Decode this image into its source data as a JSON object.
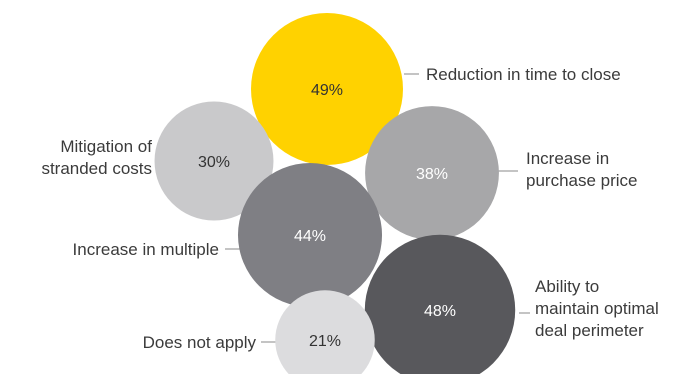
{
  "chart_data": {
    "type": "bubble",
    "items": [
      {
        "label": [
          "Reduction in time to close"
        ],
        "value": 49,
        "display": "49%",
        "fill": "#ffd200",
        "text_color": "#333333"
      },
      {
        "label": [
          "Mitigation of",
          "stranded costs"
        ],
        "value": 30,
        "display": "30%",
        "fill": "#c9c9cb",
        "text_color": "#333333"
      },
      {
        "label": [
          "Increase in",
          "purchase price"
        ],
        "value": 38,
        "display": "38%",
        "fill": "#a7a7a9",
        "text_color": "#ffffff"
      },
      {
        "label": [
          "Increase in multiple"
        ],
        "value": 44,
        "display": "44%",
        "fill": "#7f7f84",
        "text_color": "#ffffff"
      },
      {
        "label": [
          "Ability to",
          "maintain optimal",
          "deal perimeter"
        ],
        "value": 48,
        "display": "48%",
        "fill": "#58585c",
        "text_color": "#ffffff"
      },
      {
        "label": [
          "Does not apply"
        ],
        "value": 21,
        "display": "21%",
        "fill": "#dcdcde",
        "text_color": "#333333"
      }
    ]
  },
  "colors": {
    "leader_line": "#8a8a8a",
    "label_text": "#3b3b3b"
  }
}
